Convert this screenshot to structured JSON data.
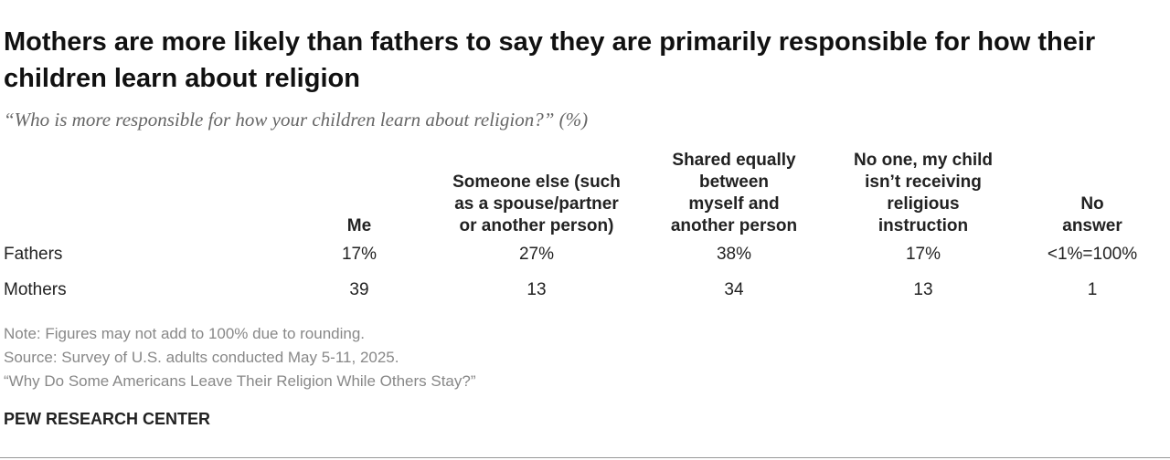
{
  "header": {
    "title": "Mothers are more likely than fathers to say they are primarily responsible for how their children learn about religion",
    "subtitle": "“Who is more responsible for how your children learn about religion?” (%)"
  },
  "table": {
    "columns": [
      "Me",
      "Someone else (such\nas a spouse/partner\nor another person)",
      "Shared equally\nbetween\nmyself and\nanother person",
      "No one, my child\nisn’t receiving\nreligious\ninstruction",
      "No\nanswer"
    ],
    "rows": [
      [
        "Fathers",
        "17%",
        "27%",
        "38%",
        "17%",
        "<1%=100%"
      ],
      [
        "Mothers",
        "39",
        "13",
        "34",
        "13",
        "1"
      ]
    ]
  },
  "notes": [
    "Note: Figures may not add to 100% due to rounding.",
    "Source: Survey of U.S. adults conducted May 5-11, 2025.",
    "“Why Do Some Americans Leave Their Religion While Others Stay?”"
  ],
  "footer": "PEW RESEARCH CENTER"
}
